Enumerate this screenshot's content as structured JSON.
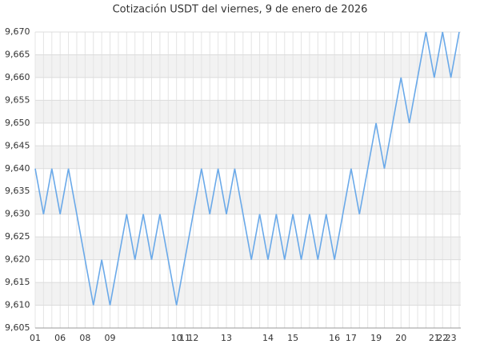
{
  "chart_data": {
    "type": "line",
    "title": "Cotización USDT del viernes, 9 de enero de 2026",
    "categories": [
      "01",
      null,
      null,
      "06",
      null,
      null,
      "08",
      null,
      null,
      "09",
      null,
      null,
      null,
      null,
      null,
      null,
      null,
      "10",
      "11",
      "12",
      null,
      null,
      null,
      "13",
      null,
      null,
      null,
      null,
      "14",
      null,
      null,
      "15",
      null,
      null,
      null,
      null,
      "16",
      null,
      "17",
      null,
      null,
      "19",
      null,
      null,
      "20",
      null,
      null,
      null,
      "21",
      "22",
      "23",
      null
    ],
    "series": [
      {
        "name": "USDT",
        "color": "#6aa9e9",
        "values": [
          9.64,
          9.63,
          9.64,
          9.63,
          9.64,
          9.63,
          9.62,
          9.61,
          9.62,
          9.61,
          9.62,
          9.63,
          9.62,
          9.63,
          9.62,
          9.63,
          9.62,
          9.61,
          9.62,
          9.63,
          9.64,
          9.63,
          9.64,
          9.63,
          9.64,
          9.63,
          9.62,
          9.63,
          9.62,
          9.63,
          9.62,
          9.63,
          9.62,
          9.63,
          9.62,
          9.63,
          9.62,
          9.63,
          9.64,
          9.63,
          9.64,
          9.65,
          9.64,
          9.65,
          9.66,
          9.65,
          9.66,
          9.67,
          9.66,
          9.67,
          9.66,
          9.67
        ]
      }
    ],
    "ylim": [
      9.605,
      9.67
    ],
    "yticks": [
      {
        "value": 9.605,
        "label": "9,605"
      },
      {
        "value": 9.61,
        "label": "9,610"
      },
      {
        "value": 9.615,
        "label": "9,615"
      },
      {
        "value": 9.62,
        "label": "9,620"
      },
      {
        "value": 9.625,
        "label": "9,625"
      },
      {
        "value": 9.63,
        "label": "9,630"
      },
      {
        "value": 9.635,
        "label": "9,635"
      },
      {
        "value": 9.64,
        "label": "9,640"
      },
      {
        "value": 9.645,
        "label": "9,645"
      },
      {
        "value": 9.65,
        "label": "9,650"
      },
      {
        "value": 9.655,
        "label": "9,655"
      },
      {
        "value": 9.66,
        "label": "9,660"
      },
      {
        "value": 9.665,
        "label": "9,665"
      },
      {
        "value": 9.67,
        "label": "9,670"
      }
    ],
    "grid": true
  }
}
